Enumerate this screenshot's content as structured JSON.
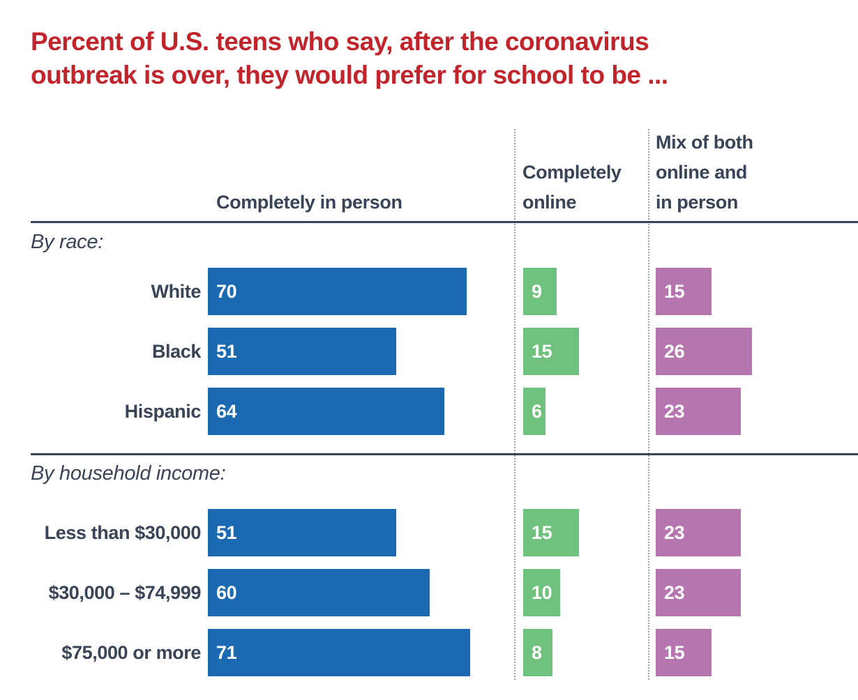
{
  "chart_data": {
    "type": "bar",
    "orientation": "horizontal",
    "title": "Percent of U.S. teens who say, after the coronavirus outbreak is over, they would prefer for school to be ...",
    "title_lines": [
      "Percent of U.S. teens who say, after the coronavirus",
      "outbreak is over, they would prefer for school to be ..."
    ],
    "title_color": "#c2242c",
    "text_color": "#3a4457",
    "separator_style": "dotted",
    "separator_color": "#999999",
    "grid": false,
    "legend_position": "column-headers",
    "unit": "percent",
    "value_range": [
      0,
      100
    ],
    "columns": [
      {
        "id": "completely-in-person",
        "name": "Completely in person",
        "header_lines": [
          "Completely in person"
        ],
        "color": "#1b6ab1"
      },
      {
        "id": "completely-online",
        "name": "Completely online",
        "header_lines": [
          "Completely",
          "online"
        ],
        "color": "#6fc17d"
      },
      {
        "id": "mix-of-both",
        "name": "Mix of both online and in person",
        "header_lines": [
          "Mix of both",
          "online and",
          "in person"
        ],
        "color": "#b675ae"
      }
    ],
    "groups": [
      {
        "label": "By race:",
        "rows": [
          {
            "category": "White",
            "values": [
              70,
              9,
              15
            ]
          },
          {
            "category": "Black",
            "values": [
              51,
              15,
              26
            ]
          },
          {
            "category": "Hispanic",
            "values": [
              64,
              6,
              23
            ]
          }
        ]
      },
      {
        "label": "By household income:",
        "rows": [
          {
            "category": "Less than $30,000",
            "values": [
              51,
              15,
              23
            ]
          },
          {
            "category": "$30,000 – $74,999",
            "values": [
              60,
              10,
              23
            ]
          },
          {
            "category": "$75,000 or more",
            "values": [
              71,
              8,
              15
            ]
          }
        ]
      }
    ]
  }
}
